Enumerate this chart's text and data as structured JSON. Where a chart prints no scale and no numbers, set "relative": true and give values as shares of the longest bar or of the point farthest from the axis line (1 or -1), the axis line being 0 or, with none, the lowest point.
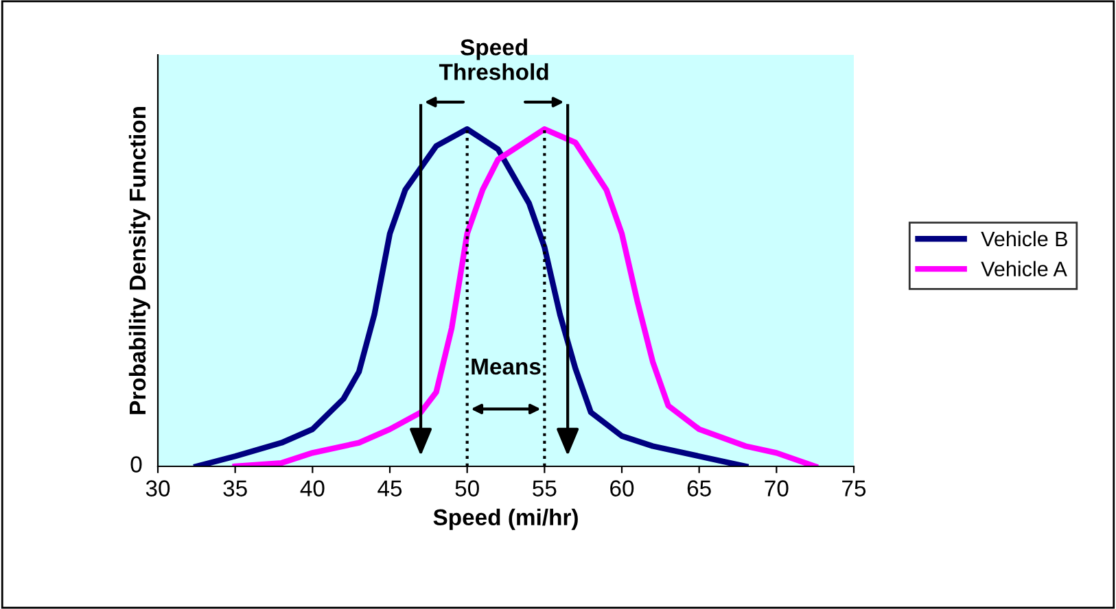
{
  "chart_data": {
    "type": "line",
    "relative": true,
    "xlabel": "Speed (mi/hr)",
    "ylabel": "Probability Density Function",
    "xlim": [
      30,
      75
    ],
    "xticks": [
      30,
      35,
      40,
      45,
      50,
      55,
      60,
      65,
      70,
      75
    ],
    "grid": false,
    "legend": "right",
    "marker": "none",
    "line_style": "solid",
    "series": [
      {
        "name": "Vehicle B",
        "color": "#000080",
        "x": [
          32.5,
          35,
          38,
          40,
          42,
          43,
          44,
          45,
          46,
          48,
          50,
          52,
          54,
          55,
          56,
          57,
          58,
          60,
          62,
          65,
          68
        ],
        "values": [
          0,
          0.03,
          0.07,
          0.11,
          0.2,
          0.28,
          0.45,
          0.69,
          0.82,
          0.95,
          1,
          0.94,
          0.78,
          0.65,
          0.45,
          0.29,
          0.16,
          0.09,
          0.06,
          0.03,
          0
        ]
      },
      {
        "name": "Vehicle A",
        "color": "#ff00ff",
        "x": [
          35,
          38,
          40,
          43,
          45,
          47,
          48,
          49,
          50,
          51,
          52,
          55,
          57,
          59,
          60,
          61,
          62,
          63,
          65,
          68,
          70,
          72.5
        ],
        "values": [
          0,
          0.01,
          0.04,
          0.07,
          0.11,
          0.16,
          0.22,
          0.41,
          0.69,
          0.82,
          0.91,
          1,
          0.96,
          0.82,
          0.69,
          0.49,
          0.31,
          0.18,
          0.11,
          0.06,
          0.04,
          0
        ]
      }
    ],
    "ref_lines": [
      {
        "axis": "x",
        "value": 50,
        "line_style": "dotted",
        "color": "#000000"
      },
      {
        "axis": "x",
        "value": 55,
        "line_style": "dotted",
        "color": "#000000"
      },
      {
        "axis": "x",
        "value": 47,
        "line_style": "solid",
        "color": "#000000"
      },
      {
        "axis": "x",
        "value": 56.5,
        "line_style": "solid",
        "color": "#000000"
      }
    ],
    "annotations": [
      "Speed\nThreshold",
      "Means",
      "0"
    ]
  }
}
